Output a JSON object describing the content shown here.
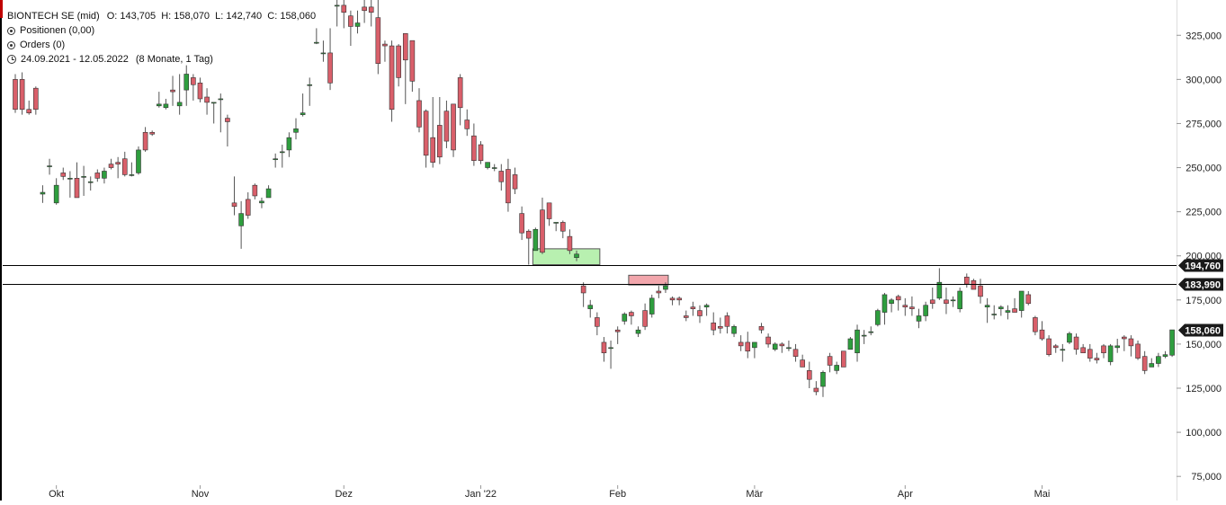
{
  "header": {
    "instrument": "BIONTECH SE (mid)",
    "ohlc": "O: 143,705  H: 158,070  L: 142,740  C: 158,060",
    "positions": "Positionen (0,00)",
    "orders": "Orders (0)",
    "range": "24.09.2021 - 12.05.2022",
    "range_detail": "(8 Monate, 1 Tag)"
  },
  "colors": {
    "up": "#2e9e3e",
    "down": "#d95f6a",
    "wick": "#555555",
    "grid_axis": "#dddddd",
    "zone_green": "#b8f0b0",
    "zone_red": "#f2a6ac"
  },
  "chart_data": {
    "type": "candlestick",
    "ylim": [
      70000,
      345000
    ],
    "y_ticks": [
      75000,
      100000,
      125000,
      150000,
      175000,
      200000,
      225000,
      250000,
      275000,
      300000,
      325000
    ],
    "y_tick_labels": [
      "75,000",
      "100,000",
      "125,000",
      "150,000",
      "175,000",
      "200,000",
      "225,000",
      "250,000",
      "275,000",
      "300,000",
      "325,000"
    ],
    "x_labels": [
      "Okt",
      "Nov",
      "Dez",
      "Jan '22",
      "Feb",
      "Mär",
      "Apr",
      "Mai"
    ],
    "x_label_index": [
      6,
      27,
      48,
      68,
      88,
      108,
      130,
      150
    ],
    "hlines": [
      {
        "value": 194760,
        "label": "194,760"
      },
      {
        "value": 183990,
        "label": "183,990"
      }
    ],
    "last_price": {
      "value": 158060,
      "label": "158,060"
    },
    "zones": [
      {
        "from": 76,
        "to": 85,
        "low": 195000,
        "high": 204000,
        "kind": "green"
      },
      {
        "from": 90,
        "to": 95,
        "low": 183500,
        "high": 189000,
        "kind": "red"
      }
    ],
    "candles": [
      [
        300000,
        283000,
        303000,
        281000
      ],
      [
        300000,
        283000,
        304000,
        280000
      ],
      [
        283000,
        281000,
        288000,
        280000
      ],
      [
        295000,
        283000,
        296000,
        280000
      ],
      [
        235000,
        236000,
        240000,
        230000
      ],
      [
        251000,
        251000,
        255000,
        246000
      ],
      [
        230000,
        240000,
        244000,
        229000
      ],
      [
        247000,
        245000,
        250000,
        243000
      ],
      [
        244000,
        244000,
        248000,
        233000
      ],
      [
        244000,
        233000,
        253000,
        233000
      ],
      [
        245000,
        245000,
        251000,
        234000
      ],
      [
        242000,
        242000,
        245000,
        237000
      ],
      [
        247000,
        244000,
        249000,
        242000
      ],
      [
        244000,
        248000,
        250000,
        241000
      ],
      [
        252000,
        250000,
        255000,
        249000
      ],
      [
        253000,
        252000,
        256000,
        244000
      ],
      [
        255000,
        246000,
        259000,
        245000
      ],
      [
        246000,
        246000,
        253000,
        245000
      ],
      [
        247000,
        260000,
        262000,
        246000
      ],
      [
        270000,
        260000,
        273000,
        259000
      ],
      [
        270000,
        269000,
        271000,
        268000
      ],
      [
        285000,
        286000,
        293000,
        284000
      ],
      [
        284000,
        286000,
        289000,
        283000
      ],
      [
        294000,
        293000,
        302000,
        285000
      ],
      [
        285000,
        287000,
        303000,
        280000
      ],
      [
        294000,
        303000,
        308000,
        285000
      ],
      [
        301000,
        297000,
        303000,
        288000
      ],
      [
        298000,
        289000,
        301000,
        287000
      ],
      [
        290000,
        287000,
        295000,
        280000
      ],
      [
        287000,
        287000,
        287000,
        275000
      ],
      [
        289000,
        289000,
        292000,
        270000
      ],
      [
        278000,
        276000,
        280000,
        262000
      ],
      [
        230000,
        228000,
        245000,
        223000
      ],
      [
        217000,
        224000,
        231000,
        204000
      ],
      [
        232000,
        223000,
        236000,
        221000
      ],
      [
        240000,
        234000,
        241000,
        232000
      ],
      [
        230000,
        231000,
        233000,
        227000
      ],
      [
        233000,
        238000,
        240000,
        234000
      ],
      [
        255000,
        255000,
        258000,
        250000
      ],
      [
        259000,
        259000,
        263000,
        250000
      ],
      [
        260000,
        267000,
        270000,
        256000
      ],
      [
        270000,
        272000,
        278000,
        266000
      ],
      [
        280000,
        281000,
        292000,
        279000
      ],
      [
        297000,
        297000,
        301000,
        285000
      ],
      [
        321000,
        321000,
        329000,
        320000
      ],
      [
        315000,
        315000,
        322000,
        310000
      ],
      [
        315000,
        298000,
        329000,
        294000
      ],
      [
        342000,
        342000,
        345000,
        330000
      ],
      [
        342000,
        338000,
        348000,
        329000
      ],
      [
        336000,
        330000,
        339000,
        319000
      ],
      [
        330000,
        332000,
        339000,
        326000
      ],
      [
        341000,
        339000,
        349000,
        332000
      ],
      [
        341000,
        338000,
        345000,
        330000
      ],
      [
        335000,
        309000,
        350000,
        303000
      ],
      [
        320000,
        319000,
        322000,
        310000
      ],
      [
        319000,
        283000,
        322000,
        276000
      ],
      [
        319000,
        301000,
        320000,
        296000
      ],
      [
        326000,
        311000,
        320000,
        286000
      ],
      [
        322000,
        299000,
        316000,
        293000
      ],
      [
        288000,
        273000,
        295000,
        270000
      ],
      [
        282000,
        257000,
        283000,
        250000
      ],
      [
        267000,
        253000,
        290000,
        250000
      ],
      [
        274000,
        256000,
        290000,
        252000
      ],
      [
        282000,
        265000,
        288000,
        261000
      ],
      [
        286000,
        260000,
        286000,
        256000
      ],
      [
        301000,
        284000,
        303000,
        274000
      ],
      [
        277000,
        272000,
        283000,
        268000
      ],
      [
        268000,
        254000,
        275000,
        251000
      ],
      [
        263000,
        254000,
        265000,
        252000
      ],
      [
        250000,
        253000,
        253000,
        249000
      ],
      [
        250000,
        250000,
        252000,
        248000
      ],
      [
        248000,
        242000,
        252000,
        237000
      ],
      [
        249000,
        230000,
        255000,
        225000
      ],
      [
        246000,
        238000,
        250000,
        235000
      ],
      [
        224000,
        213000,
        228000,
        209000
      ],
      [
        214000,
        210000,
        215000,
        195000
      ],
      [
        203000,
        215000,
        216000,
        203000
      ],
      [
        226000,
        202000,
        233000,
        201000
      ],
      [
        230000,
        221000,
        230000,
        217000
      ],
      [
        219000,
        219000,
        219000,
        214000
      ],
      [
        219000,
        214000,
        220000,
        210000
      ],
      [
        211000,
        203000,
        215000,
        201000
      ],
      [
        199000,
        201000,
        203000,
        197000
      ],
      [
        183000,
        179000,
        185000,
        171000
      ],
      [
        170000,
        172000,
        175000,
        165000
      ],
      [
        165000,
        160000,
        168000,
        155000
      ],
      [
        151000,
        145000,
        154000,
        140000
      ],
      [
        148000,
        148000,
        152000,
        136000
      ],
      [
        158000,
        157000,
        160000,
        150000
      ],
      [
        163000,
        167000,
        168000,
        161000
      ],
      [
        168000,
        166000,
        169000,
        161000
      ],
      [
        156000,
        158000,
        160000,
        154000
      ],
      [
        169000,
        160000,
        173000,
        158000
      ],
      [
        167000,
        176000,
        178000,
        165000
      ],
      [
        180000,
        179000,
        183000,
        176000
      ],
      [
        181000,
        183000,
        185000,
        179000
      ],
      [
        176000,
        175000,
        177000,
        172000
      ],
      [
        176000,
        175000,
        177000,
        172000
      ],
      [
        166000,
        165000,
        169000,
        163000
      ],
      [
        171000,
        170000,
        174000,
        166000
      ],
      [
        169000,
        166000,
        172000,
        162000
      ],
      [
        171000,
        172000,
        173000,
        166000
      ],
      [
        162000,
        158000,
        168000,
        155000
      ],
      [
        160000,
        159000,
        165000,
        156000
      ],
      [
        166000,
        160000,
        168000,
        156000
      ],
      [
        156000,
        160000,
        161000,
        154000
      ],
      [
        151000,
        149000,
        155000,
        146000
      ],
      [
        151000,
        146000,
        157000,
        142000
      ],
      [
        148000,
        151000,
        151000,
        142000
      ],
      [
        160000,
        158000,
        162000,
        156000
      ],
      [
        154000,
        150000,
        156000,
        148000
      ],
      [
        147000,
        150000,
        151000,
        146000
      ],
      [
        150000,
        149000,
        151000,
        145000
      ],
      [
        148000,
        148000,
        152000,
        146000
      ],
      [
        147000,
        143000,
        150000,
        140000
      ],
      [
        141000,
        137000,
        144000,
        140000
      ],
      [
        135000,
        130000,
        140000,
        125000
      ],
      [
        125000,
        123000,
        129000,
        121000
      ],
      [
        126000,
        134000,
        135000,
        120000
      ],
      [
        143000,
        138000,
        145000,
        134000
      ],
      [
        135000,
        138000,
        140000,
        133000
      ],
      [
        146000,
        137000,
        142000,
        138000
      ],
      [
        147000,
        153000,
        154000,
        147000
      ],
      [
        145000,
        158000,
        161000,
        140000
      ],
      [
        155000,
        155000,
        158000,
        150000
      ],
      [
        157000,
        157000,
        160000,
        155000
      ],
      [
        161000,
        169000,
        170000,
        160000
      ],
      [
        168000,
        178000,
        179000,
        161000
      ],
      [
        173000,
        175000,
        176000,
        168000
      ],
      [
        177000,
        175000,
        178000,
        169000
      ],
      [
        172000,
        171000,
        176000,
        166000
      ],
      [
        171000,
        170000,
        177000,
        166000
      ],
      [
        163000,
        166000,
        170000,
        159000
      ],
      [
        166000,
        172000,
        174000,
        163000
      ],
      [
        175000,
        173000,
        182000,
        170000
      ],
      [
        176000,
        185000,
        193000,
        175000
      ],
      [
        175000,
        173000,
        182000,
        167000
      ],
      [
        175000,
        175000,
        177000,
        171000
      ],
      [
        170000,
        180000,
        182000,
        168000
      ],
      [
        188000,
        184000,
        190000,
        182000
      ],
      [
        186000,
        181000,
        187000,
        182000
      ],
      [
        183000,
        177000,
        187000,
        173000
      ],
      [
        171000,
        172000,
        176000,
        162000
      ],
      [
        167000,
        167000,
        172000,
        164000
      ],
      [
        170000,
        171000,
        172000,
        166000
      ],
      [
        168000,
        169000,
        172000,
        164000
      ],
      [
        170000,
        168000,
        176000,
        168000
      ],
      [
        169000,
        180000,
        180000,
        165000
      ],
      [
        178000,
        173000,
        180000,
        172000
      ],
      [
        165000,
        157000,
        166000,
        155000
      ],
      [
        158000,
        153000,
        163000,
        152000
      ],
      [
        153000,
        144000,
        155000,
        143000
      ],
      [
        149000,
        148000,
        150000,
        145000
      ],
      [
        147000,
        147000,
        150000,
        140000
      ],
      [
        151000,
        156000,
        157000,
        150000
      ],
      [
        154000,
        147000,
        156000,
        144000
      ],
      [
        148000,
        145000,
        150000,
        146000
      ],
      [
        147000,
        142000,
        150000,
        140000
      ],
      [
        142000,
        141000,
        145000,
        139000
      ],
      [
        149000,
        145000,
        150000,
        142000
      ],
      [
        140000,
        149000,
        150000,
        138000
      ],
      [
        148000,
        149000,
        153000,
        145000
      ],
      [
        154000,
        153000,
        155000,
        146000
      ],
      [
        153000,
        149000,
        155000,
        143000
      ],
      [
        150000,
        142000,
        152000,
        141000
      ],
      [
        143000,
        135000,
        146000,
        133000
      ],
      [
        137000,
        139000,
        142000,
        137000
      ],
      [
        139000,
        143000,
        145000,
        137000
      ],
      [
        143000,
        144000,
        146000,
        142000
      ],
      [
        143705,
        158060,
        158070,
        142740
      ]
    ]
  }
}
